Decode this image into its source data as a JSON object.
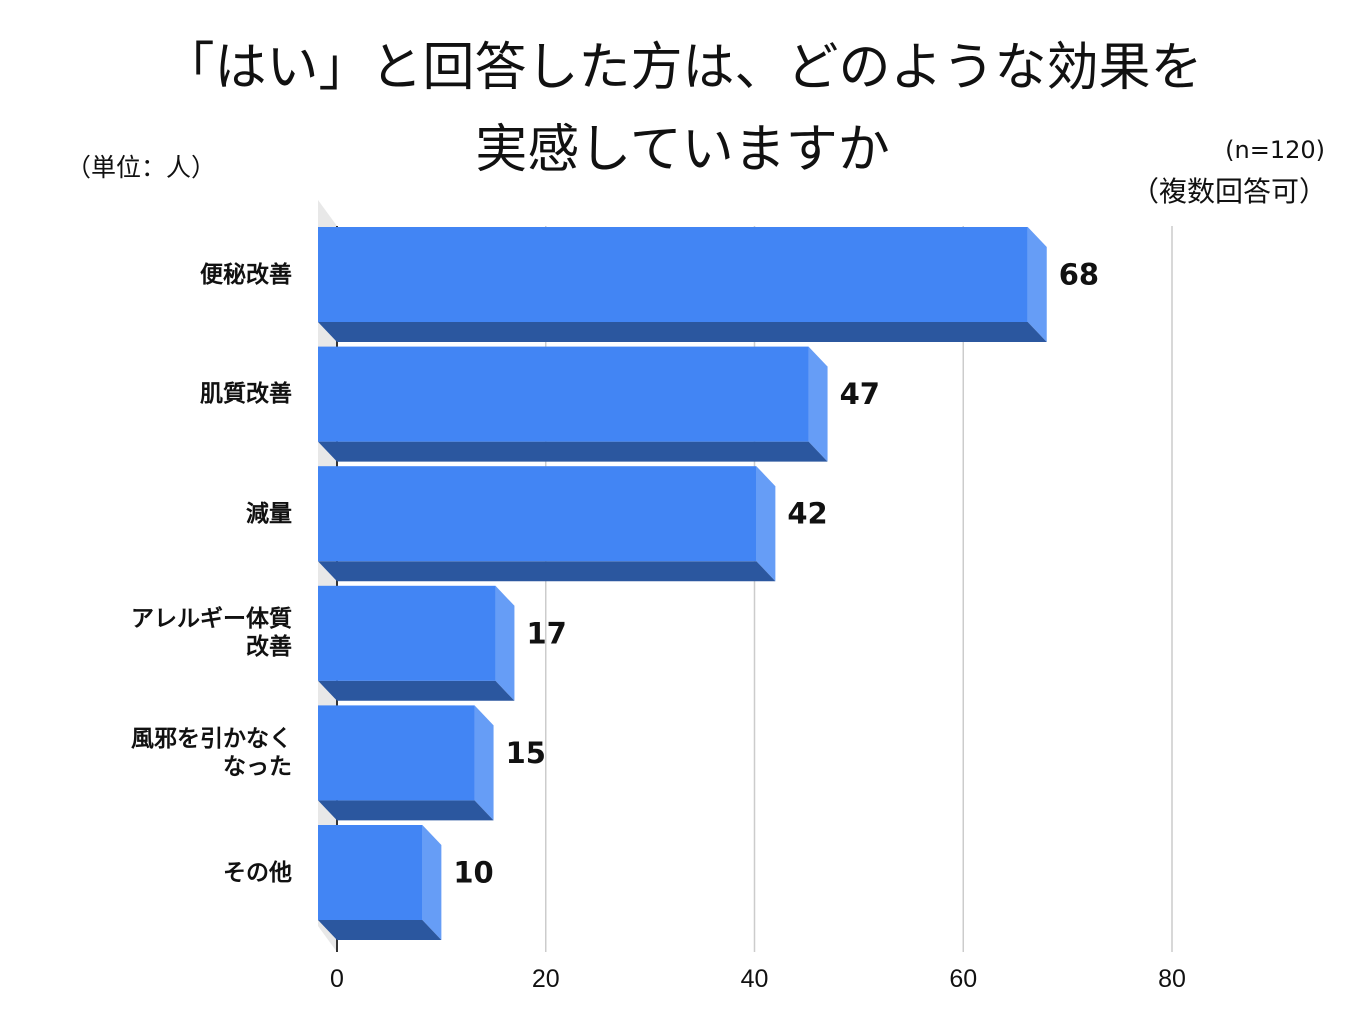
{
  "title_line1": "「はい」と回答した方は、どのような効果を",
  "title_line2": "実感していますか",
  "unit_note": "（単位：人）",
  "sample_note": "(n=120)",
  "multi_note": "（複数回答可）",
  "colors": {
    "bar_front": "#4285f4",
    "bar_side": "#669df6",
    "bar_bottom": "#2b579f",
    "gridline": "#cccccc",
    "wall": "#e8e8e8"
  },
  "chart_data": {
    "type": "bar",
    "orientation": "horizontal",
    "style": "3d",
    "title": "「はい」と回答した方は、どのような効果を実感していますか",
    "categories": [
      "便秘改善",
      "肌質改善",
      "減量",
      "アレルギー体質改善",
      "風邪を引かなくなった",
      "その他"
    ],
    "category_lines": [
      [
        "便秘改善"
      ],
      [
        "肌質改善"
      ],
      [
        "減量"
      ],
      [
        "アレルギー体質",
        "改善"
      ],
      [
        "風邪を引かなく",
        "なった"
      ],
      [
        "その他"
      ]
    ],
    "values": [
      68,
      47,
      42,
      17,
      15,
      10
    ],
    "data_labels": [
      "68",
      "47",
      "42",
      "17",
      "15",
      "10"
    ],
    "xlim": [
      0,
      80
    ],
    "xticks": [
      "0",
      "20",
      "40",
      "60",
      "80"
    ],
    "grid": true
  }
}
